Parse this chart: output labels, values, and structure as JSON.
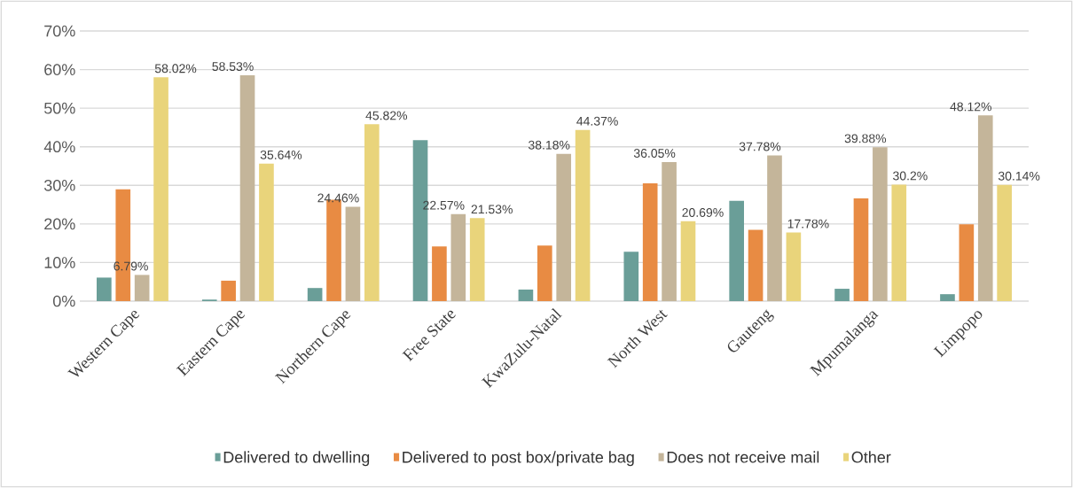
{
  "chart_data": {
    "type": "bar",
    "categories": [
      "Western Cape",
      "Eastern Cape",
      "Northern Cape",
      "Free State",
      "KwaZulu-Natal",
      "North West",
      "Gauteng",
      "Mpumalanga",
      "Limpopo"
    ],
    "series": [
      {
        "name": "Delivered to dwelling",
        "color": "#6a9e98",
        "values": [
          6.1,
          0.4,
          3.4,
          41.7,
          3.0,
          12.8,
          26.0,
          3.2,
          1.8
        ]
      },
      {
        "name": "Delivered to post box/private bag",
        "color": "#e88b43",
        "values": [
          29.0,
          5.3,
          26.3,
          14.2,
          14.4,
          30.5,
          18.5,
          26.6,
          19.9
        ]
      },
      {
        "name": "Does not receive mail",
        "color": "#c4b59a",
        "values": [
          6.79,
          58.53,
          24.46,
          22.57,
          38.18,
          36.05,
          37.78,
          39.88,
          48.12
        ],
        "value_labels": [
          "6.79%",
          "58.53%",
          "24.46%",
          "22.57%",
          "38.18%",
          "36.05%",
          "37.78%",
          "39.88%",
          "48.12%"
        ]
      },
      {
        "name": "Other",
        "color": "#e9d47b",
        "values": [
          58.02,
          35.64,
          45.82,
          21.53,
          44.37,
          20.69,
          17.78,
          30.2,
          30.14
        ],
        "value_labels": [
          "58.02%",
          "35.64%",
          "45.82%",
          "21.53%",
          "44.37%",
          "20.69%",
          "17.78%",
          "30.2%",
          "30.14%"
        ]
      }
    ],
    "ylim": [
      0,
      70
    ],
    "yticks": [
      {
        "value": 0,
        "label": "0%"
      },
      {
        "value": 10,
        "label": "10%"
      },
      {
        "value": 20,
        "label": "20%"
      },
      {
        "value": 30,
        "label": "30%"
      },
      {
        "value": 40,
        "label": "40%"
      },
      {
        "value": 50,
        "label": "50%"
      },
      {
        "value": 60,
        "label": "60%"
      },
      {
        "value": 70,
        "label": "70%"
      }
    ],
    "grid": "y",
    "legend": "bottom"
  }
}
